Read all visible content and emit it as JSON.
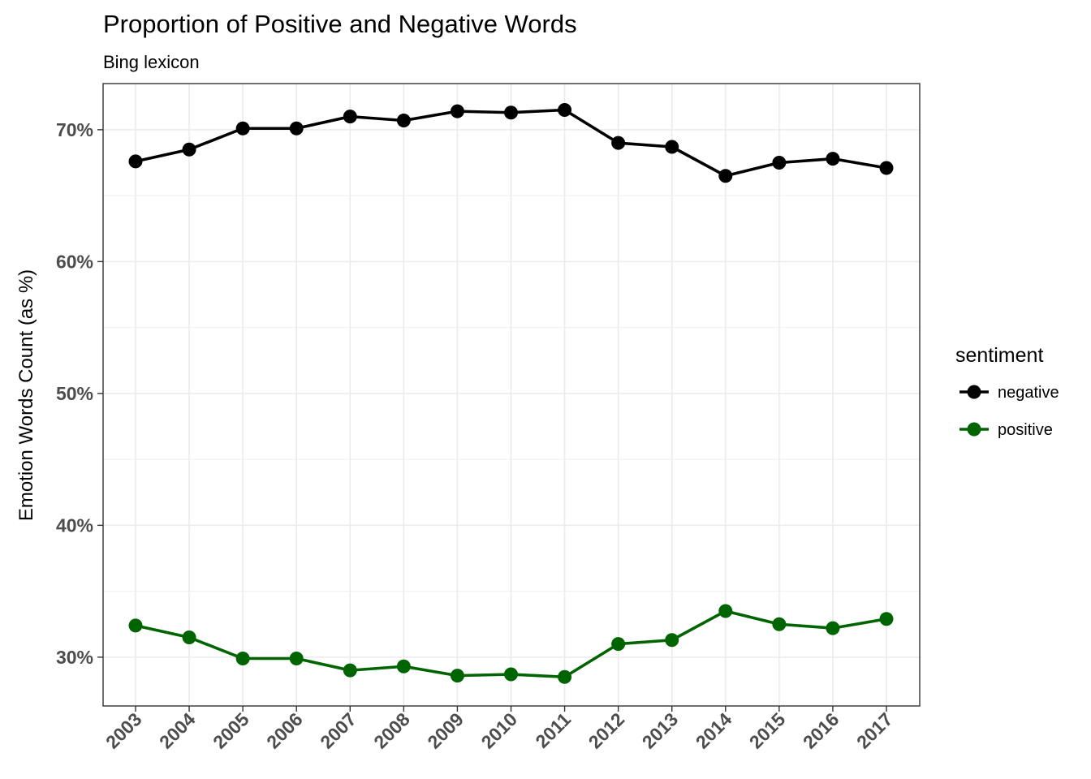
{
  "chart_data": {
    "type": "line",
    "title": "Proportion of Positive and Negative Words",
    "subtitle": "Bing lexicon",
    "xlabel": "",
    "ylabel": "Emotion Words Count (as %)",
    "categories": [
      "2003",
      "2004",
      "2005",
      "2006",
      "2007",
      "2008",
      "2009",
      "2010",
      "2011",
      "2012",
      "2013",
      "2014",
      "2015",
      "2016",
      "2017"
    ],
    "series": [
      {
        "name": "negative",
        "color": "#000000",
        "values": [
          67.6,
          68.5,
          70.1,
          70.1,
          71.0,
          70.7,
          71.4,
          71.3,
          71.5,
          69.0,
          68.7,
          66.5,
          67.5,
          67.8,
          67.1
        ]
      },
      {
        "name": "positive",
        "color": "#006400",
        "values": [
          32.4,
          31.5,
          29.9,
          29.9,
          29.0,
          29.3,
          28.6,
          28.7,
          28.5,
          31.0,
          31.3,
          33.5,
          32.5,
          32.2,
          32.9
        ]
      }
    ],
    "yticks": [
      30,
      40,
      50,
      60,
      70
    ],
    "ytick_labels": [
      "30%",
      "40%",
      "50%",
      "60%",
      "70%"
    ],
    "ylim": [
      26.3,
      73.5
    ],
    "grid": true,
    "legend": {
      "title": "sentiment",
      "placement": "right"
    }
  }
}
